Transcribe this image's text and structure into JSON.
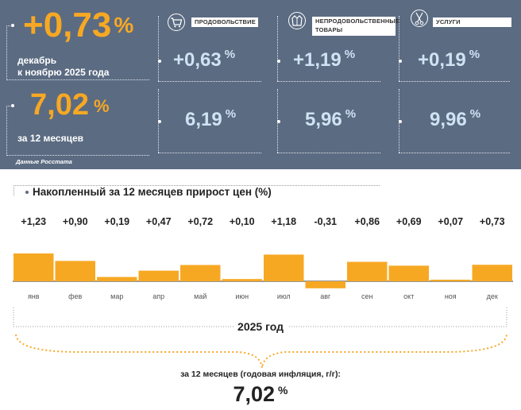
{
  "header": {
    "monthly": {
      "value": "+0,73",
      "unit": "%",
      "label_line1": "декабрь",
      "label_line2": "к ноябрю 2025 года"
    },
    "annual": {
      "value": "7,02",
      "unit": "%",
      "label": "за 12 месяцев"
    },
    "source": "Данные Росстата",
    "categories": [
      {
        "label": "ПРОДОВОЛЬСТВИЕ",
        "icon": "shopping-cart-icon",
        "monthly": "+0,63",
        "annual": "6,19",
        "unit": "%"
      },
      {
        "label": "НЕПРОДОВОЛЬСТВЕННЫЕ ТОВАРЫ",
        "icon": "jacket-icon",
        "monthly": "+1,19",
        "annual": "5,96",
        "unit": "%"
      },
      {
        "label": "УСЛУГИ",
        "icon": "scissors-comb-icon",
        "monthly": "+0,19",
        "annual": "9,96",
        "unit": "%"
      }
    ]
  },
  "chart_data": {
    "type": "bar",
    "title": "Накопленный за 12 месяцев прирост цен (%)",
    "categories": [
      "янв",
      "фев",
      "мар",
      "апр",
      "май",
      "июн",
      "июл",
      "авг",
      "сен",
      "окт",
      "ноя",
      "дек"
    ],
    "values": [
      1.23,
      0.9,
      0.19,
      0.47,
      0.72,
      0.1,
      1.18,
      -0.31,
      0.86,
      0.69,
      0.07,
      0.73
    ],
    "value_labels": [
      "+1,23",
      "+0,90",
      "+0,19",
      "+0,47",
      "+0,72",
      "+0,10",
      "+1,18",
      "-0,31",
      "+0,86",
      "+0,69",
      "+0,07",
      "+0,73"
    ],
    "bar_color": "#f7a823",
    "ylim": [
      -0.31,
      1.23
    ],
    "grid": false
  },
  "footer": {
    "period": "2025 год",
    "label": "за 12 месяцев (годовая инфляция, г/г):",
    "value": "7,02",
    "unit": "%"
  },
  "colors": {
    "panel": "#5b6b82",
    "accent": "#f7a823",
    "light_value": "#cfe3f3"
  }
}
